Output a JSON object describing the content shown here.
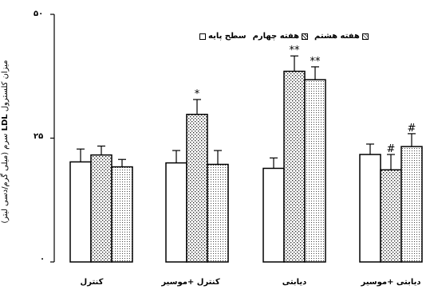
{
  "chart_data": {
    "type": "bar",
    "title": "",
    "ylabel_parts": [
      "میزان کلسترول",
      "LDL",
      "سرم (میلی گرم/دسی لیتر)"
    ],
    "yticks": [
      "۰",
      "۲۵",
      "۵۰"
    ],
    "ylim": [
      0,
      50
    ],
    "categories": [
      "کنترل",
      "کنترل +موسیر",
      "دیابتی",
      "دیابتی +موسیر"
    ],
    "series": [
      {
        "name": "سطح پایه",
        "pattern": "white",
        "values": [
          20.2,
          20.0,
          18.9,
          21.7
        ],
        "errors": [
          2.6,
          2.5,
          2.1,
          2.1
        ],
        "marks": [
          "",
          "",
          "",
          ""
        ]
      },
      {
        "name": "هفته چهارم",
        "pattern": "dots",
        "values": [
          21.6,
          29.8,
          38.5,
          18.6
        ],
        "errors": [
          1.8,
          3.0,
          3.1,
          3.1
        ],
        "marks": [
          "",
          "*",
          "**",
          "#"
        ]
      },
      {
        "name": "هفته هشتم",
        "pattern": "fine-dots",
        "values": [
          19.2,
          19.7,
          36.8,
          23.3
        ],
        "errors": [
          1.5,
          2.8,
          2.6,
          2.6
        ],
        "marks": [
          "",
          "",
          "**",
          "#"
        ]
      }
    ],
    "legend_position": "top-right",
    "grid": false
  }
}
